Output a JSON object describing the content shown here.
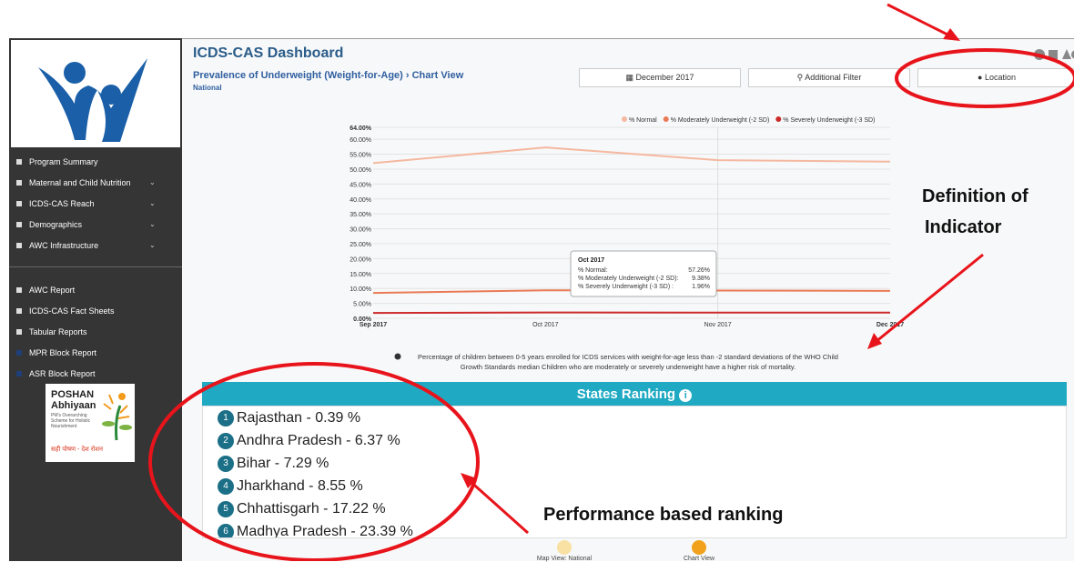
{
  "header": {
    "title": "ICDS-CAS Dashboard",
    "breadcrumb": "Prevalence of Underweight (Weight-for-Age)",
    "view": "Chart View",
    "region": "National"
  },
  "filters": [
    "December 2017",
    "Additional Filter",
    "Location"
  ],
  "sidebar": {
    "menu": [
      {
        "label": "Program Summary",
        "submenu": false
      },
      {
        "label": "Maternal and Child Nutrition",
        "submenu": true
      },
      {
        "label": "ICDS-CAS Reach",
        "submenu": true
      },
      {
        "label": "Demographics",
        "submenu": true
      },
      {
        "label": "AWC Infrastructure",
        "submenu": true
      }
    ],
    "reports": [
      "AWC Report",
      "ICDS-CAS Fact Sheets",
      "Tabular Reports",
      "MPR Block Report",
      "ASR Block Report"
    ],
    "poshan": {
      "title": "POSHAN",
      "subtitle": "Abhiyaan",
      "tagline": "PM's Overarching Scheme for Holistic Nourishment",
      "slogan": "सही पोषण - देश रोशन"
    }
  },
  "chart_data": {
    "type": "line",
    "categories": [
      "Sep 2017",
      "Oct 2017",
      "Nov 2017",
      "Dec 2017"
    ],
    "series": [
      {
        "name": "% Normal",
        "color": "#f5b8a0",
        "values": [
          52,
          57.26,
          53,
          52.5
        ]
      },
      {
        "name": "% Moderately Underweight (-2 SD)",
        "color": "#ea7a55",
        "values": [
          8.5,
          9.38,
          9.3,
          9.2
        ]
      },
      {
        "name": "% Severely Underweight (-3 SD)",
        "color": "#cc2a2a",
        "values": [
          1.8,
          1.96,
          1.9,
          1.9
        ]
      }
    ],
    "ylim": [
      0,
      64
    ],
    "yticks": [
      {
        "value": 0,
        "label": "0.00%"
      },
      {
        "value": 5,
        "label": "5.00%"
      },
      {
        "value": 10,
        "label": "10.00%"
      },
      {
        "value": 15,
        "label": "15.00%"
      },
      {
        "value": 20,
        "label": "20.00%"
      },
      {
        "value": 25,
        "label": "25.00%"
      },
      {
        "value": 30,
        "label": "30.00%"
      },
      {
        "value": 35,
        "label": "35.00%"
      },
      {
        "value": 40,
        "label": "40.00%"
      },
      {
        "value": 45,
        "label": "45.00%"
      },
      {
        "value": 50,
        "label": "50.00%"
      },
      {
        "value": 55,
        "label": "55.00%"
      },
      {
        "value": 60,
        "label": "60.00%"
      },
      {
        "value": 64,
        "label": "64.00%"
      }
    ],
    "grid": true,
    "legend": "top",
    "tooltip": {
      "title": "Oct 2017",
      "rows": [
        {
          "label": "% Normal:",
          "value": "57.26%"
        },
        {
          "label": "% Moderately Underweight (-2 SD):",
          "value": "9.38%"
        },
        {
          "label": "% Severely Underweight (-3 SD) :",
          "value": "1.96%"
        }
      ]
    }
  },
  "definition": [
    "Percentage of children between 0-5 years enrolled for ICDS services with weight-for-age less than -2 standard deviations of the WHO Child",
    "Growth Standards median Children who are moderately or severely underweight have a higher risk of mortality."
  ],
  "ranking": {
    "title": "States Ranking",
    "rows": [
      {
        "rank": "1",
        "text": "Rajasthan - 0.39 %"
      },
      {
        "rank": "2",
        "text": "Andhra Pradesh - 6.37 %"
      },
      {
        "rank": "3",
        "text": "Bihar - 7.29 %"
      },
      {
        "rank": "4",
        "text": "Jharkhand - 8.55 %"
      },
      {
        "rank": "5",
        "text": "Chhattisgarh - 17.22 %"
      },
      {
        "rank": "6",
        "text": "Madhya Pradesh - 23.39 %"
      }
    ]
  },
  "views": [
    "Map View: National",
    "Chart View"
  ],
  "annotations": {
    "definition": [
      "Definition of",
      "Indicator"
    ],
    "ranking": "Performance based ranking"
  }
}
